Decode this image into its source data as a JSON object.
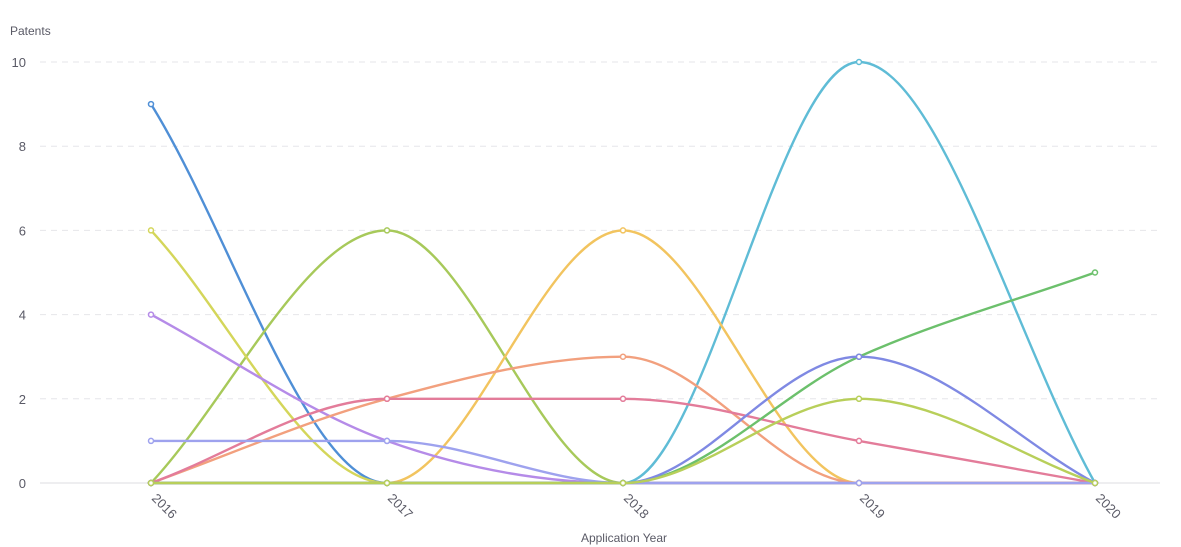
{
  "chart_data": {
    "type": "line",
    "title": "",
    "xlabel": "Application Year",
    "ylabel": "Patents",
    "x": [
      "2016",
      "2017",
      "2018",
      "2019",
      "2020"
    ],
    "ylim": [
      0,
      10
    ],
    "yticks": [
      "0",
      "2",
      "4",
      "6",
      "8",
      "10"
    ],
    "grid": true,
    "smooth": true,
    "series": [
      {
        "values": [
          9,
          0,
          0,
          0,
          0
        ],
        "color": "#4f8fd6"
      },
      {
        "values": [
          0,
          0,
          0,
          10,
          0
        ],
        "color": "#5fbcd6"
      },
      {
        "values": [
          0,
          6,
          0,
          0,
          0
        ],
        "color": "#a7c95a"
      },
      {
        "values": [
          0,
          0,
          6,
          0,
          0
        ],
        "color": "#f2c45f"
      },
      {
        "values": [
          6,
          0,
          0,
          0,
          0
        ],
        "color": "#d4d65a"
      },
      {
        "values": [
          4,
          1,
          0,
          0,
          0
        ],
        "color": "#b58be8"
      },
      {
        "values": [
          0,
          2,
          3,
          0,
          0
        ],
        "color": "#f2a07e"
      },
      {
        "values": [
          0,
          2,
          2,
          1,
          0
        ],
        "color": "#e37c9a"
      },
      {
        "values": [
          1,
          1,
          0,
          0,
          0
        ],
        "color": "#9ea2ee"
      },
      {
        "values": [
          0,
          0,
          0,
          3,
          5
        ],
        "color": "#6cc06c"
      },
      {
        "values": [
          0,
          0,
          0,
          3,
          0
        ],
        "color": "#7f89e3"
      },
      {
        "values": [
          0,
          0,
          0,
          2,
          0
        ],
        "color": "#b8cf5a"
      }
    ]
  }
}
